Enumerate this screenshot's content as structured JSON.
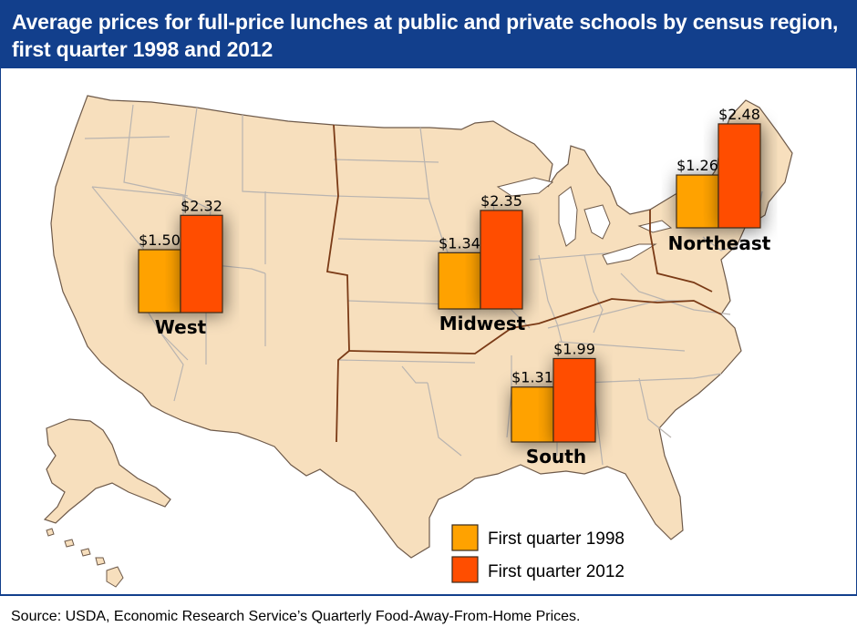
{
  "title": {
    "line1": "Average prices for full-price lunches at public and private schools by census region,",
    "line2": "first quarter 1998 and 2012"
  },
  "source": "Source: USDA, Economic Research Service’s Quarterly Food-Away-From-Home Prices.",
  "colors": {
    "header": "#123f8c",
    "land": "#f7dfbd",
    "state_border": "#b9b4b0",
    "region_border": "#7a3a16",
    "coast": "#6e5a4a",
    "series_1998": "#ffa200",
    "series_2012": "#ff4e00"
  },
  "chart_data": {
    "type": "bar",
    "title": "Average prices for full-price lunches at public and private schools by census region, first quarter 1998 and 2012",
    "categories": [
      "West",
      "Midwest",
      "Northeast",
      "South"
    ],
    "series": [
      {
        "name": "First quarter 1998",
        "values": [
          1.5,
          1.34,
          1.26,
          1.31
        ],
        "labels": [
          "$1.50",
          "$1.34",
          "$1.26",
          "$1.31"
        ]
      },
      {
        "name": "First quarter 2012",
        "values": [
          2.32,
          2.35,
          2.48,
          1.99
        ],
        "labels": [
          "$2.32",
          "$2.35",
          "$2.48",
          "$1.99"
        ]
      }
    ],
    "legend_position": "bottom-right",
    "base_map": "United States by census region"
  }
}
